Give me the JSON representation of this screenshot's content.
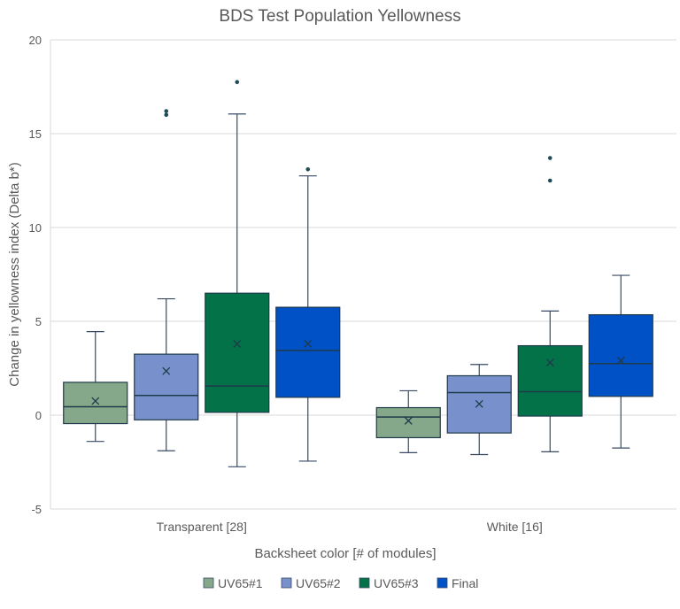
{
  "chart_data": {
    "type": "boxplot",
    "title": "BDS Test Population Yellowness",
    "xlabel": "Backsheet color [# of modules]",
    "ylabel": "Change in yellowness index (Delta b*)",
    "ylim": [
      -5,
      20
    ],
    "yticks": [
      -5,
      0,
      5,
      10,
      15,
      20
    ],
    "grid": true,
    "legend_position": "bottom",
    "categories": [
      "Transparent [28]",
      "White [16]"
    ],
    "series": [
      {
        "name": "UV65#1",
        "color": "#86a88a",
        "boxes": [
          {
            "min": -1.4,
            "q1": -0.45,
            "median": 0.45,
            "q3": 1.75,
            "max": 4.45,
            "mean": 0.75,
            "outliers": []
          },
          {
            "min": -2.0,
            "q1": -1.2,
            "median": -0.1,
            "q3": 0.4,
            "max": 1.3,
            "mean": -0.3,
            "outliers": []
          }
        ]
      },
      {
        "name": "UV65#2",
        "color": "#7890cc",
        "boxes": [
          {
            "min": -1.9,
            "q1": -0.25,
            "median": 1.05,
            "q3": 3.25,
            "max": 6.2,
            "mean": 2.35,
            "outliers": [
              16.2,
              16.0
            ]
          },
          {
            "min": -2.1,
            "q1": -0.95,
            "median": 1.2,
            "q3": 2.1,
            "max": 2.7,
            "mean": 0.6,
            "outliers": []
          }
        ]
      },
      {
        "name": "UV65#3",
        "color": "#047249",
        "boxes": [
          {
            "min": -2.75,
            "q1": 0.15,
            "median": 1.55,
            "q3": 6.5,
            "max": 16.05,
            "mean": 3.8,
            "outliers": [
              17.75
            ]
          },
          {
            "min": -1.95,
            "q1": -0.05,
            "median": 1.25,
            "q3": 3.7,
            "max": 5.55,
            "mean": 2.8,
            "outliers": [
              13.7,
              12.5
            ]
          }
        ]
      },
      {
        "name": "Final",
        "color": "#0051c6",
        "boxes": [
          {
            "min": -2.45,
            "q1": 0.95,
            "median": 3.45,
            "q3": 5.75,
            "max": 12.75,
            "mean": 3.8,
            "outliers": [
              13.1
            ]
          },
          {
            "min": -1.75,
            "q1": 1.0,
            "median": 2.75,
            "q3": 5.35,
            "max": 7.45,
            "mean": 2.9,
            "outliers": []
          }
        ]
      }
    ]
  }
}
